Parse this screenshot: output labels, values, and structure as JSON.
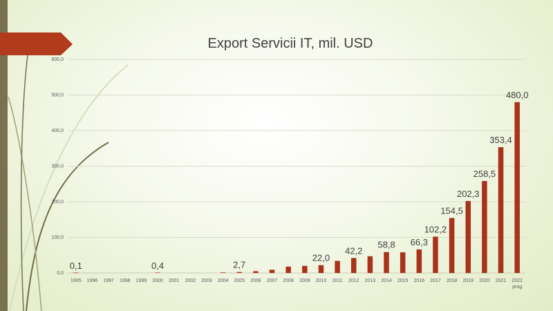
{
  "title": "Export Servicii IT, mil. USD",
  "colors": {
    "bar": "#a8321a",
    "accent": "#b23a1d",
    "strip": "#7a7150",
    "grid": "#d9dccc",
    "tick": "#595959"
  },
  "chart_data": {
    "type": "bar",
    "title": "Export Servicii IT, mil. USD",
    "xlabel": "",
    "ylabel": "",
    "ylim": [
      0,
      600
    ],
    "yticks": [
      "0,0",
      "100,0",
      "200,0",
      "300,0",
      "400,0",
      "500,0",
      "600,0"
    ],
    "grid": true,
    "categories": [
      "1995",
      "1996",
      "1997",
      "1998",
      "1999",
      "2000",
      "2001",
      "2002",
      "2003",
      "2004",
      "2005",
      "2006",
      "2007",
      "2008",
      "2009",
      "2010",
      "2011",
      "2012",
      "2013",
      "2014",
      "2015",
      "2016",
      "2017",
      "2018",
      "2019",
      "2020",
      "2021",
      "2022 prog"
    ],
    "values": [
      0.1,
      0,
      0,
      0,
      0,
      0.4,
      0,
      0,
      0,
      1.5,
      2.7,
      5,
      9,
      18,
      20,
      22.0,
      34,
      42.2,
      47,
      58.8,
      58,
      66.3,
      102.2,
      154.5,
      202.3,
      258.5,
      353.4,
      480.0
    ],
    "data_labels": [
      "0,1",
      "",
      "",
      "",
      "",
      "0,4",
      "",
      "",
      "",
      "",
      "2,7",
      "",
      "",
      "",
      "",
      "22,0",
      "",
      "42,2",
      "",
      "58,8",
      "",
      "66,3",
      "102,2",
      "154,5",
      "202,3",
      "258,5",
      "353,4",
      "480,0"
    ]
  }
}
